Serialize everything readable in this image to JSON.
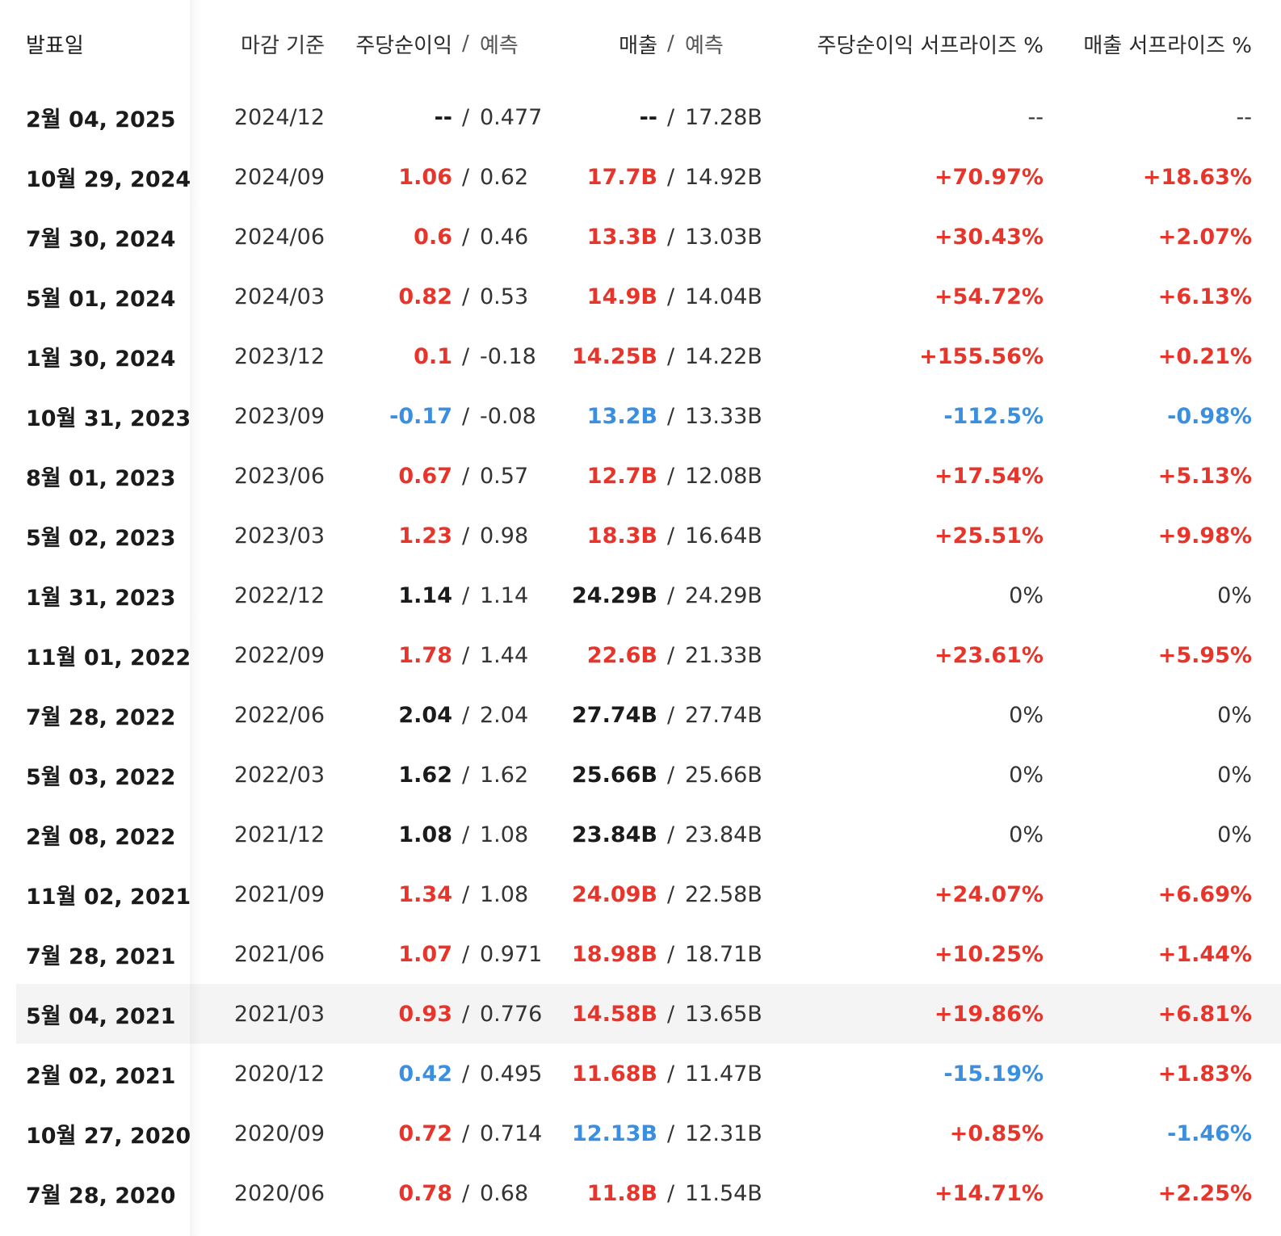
{
  "colors": {
    "positive": "#e8352b",
    "negative": "#3b8fe0",
    "neutral": "#1b1b1b",
    "highlight_row": "#f4f4f4"
  },
  "headers": {
    "date": "발표일",
    "period": "마감 기준",
    "eps": "주당순이익",
    "separator": "/",
    "forecast": "예측",
    "revenue": "매출",
    "eps_surprise": "주당순이익 서프라이즈 %",
    "revenue_surprise": "매출 서프라이즈 %"
  },
  "rows": [
    {
      "date": "2월 04, 2025",
      "period": "2024/12",
      "eps": "--",
      "eps_fc": "0.477",
      "rev": "--",
      "rev_fc": "17.28B",
      "eps_surp": "--",
      "rev_surp": "--",
      "eps_tone": "neutral",
      "rev_tone": "neutral",
      "eps_surp_tone": "muted",
      "rev_surp_tone": "muted"
    },
    {
      "date": "10월 29, 2024",
      "period": "2024/09",
      "eps": "1.06",
      "eps_fc": "0.62",
      "rev": "17.7B",
      "rev_fc": "14.92B",
      "eps_surp": "+70.97%",
      "rev_surp": "+18.63%",
      "eps_tone": "pos",
      "rev_tone": "pos",
      "eps_surp_tone": "pos",
      "rev_surp_tone": "pos"
    },
    {
      "date": "7월 30, 2024",
      "period": "2024/06",
      "eps": "0.6",
      "eps_fc": "0.46",
      "rev": "13.3B",
      "rev_fc": "13.03B",
      "eps_surp": "+30.43%",
      "rev_surp": "+2.07%",
      "eps_tone": "pos",
      "rev_tone": "pos",
      "eps_surp_tone": "pos",
      "rev_surp_tone": "pos"
    },
    {
      "date": "5월 01, 2024",
      "period": "2024/03",
      "eps": "0.82",
      "eps_fc": "0.53",
      "rev": "14.9B",
      "rev_fc": "14.04B",
      "eps_surp": "+54.72%",
      "rev_surp": "+6.13%",
      "eps_tone": "pos",
      "rev_tone": "pos",
      "eps_surp_tone": "pos",
      "rev_surp_tone": "pos"
    },
    {
      "date": "1월 30, 2024",
      "period": "2023/12",
      "eps": "0.1",
      "eps_fc": "-0.18",
      "rev": "14.25B",
      "rev_fc": "14.22B",
      "eps_surp": "+155.56%",
      "rev_surp": "+0.21%",
      "eps_tone": "pos",
      "rev_tone": "pos",
      "eps_surp_tone": "pos",
      "rev_surp_tone": "pos"
    },
    {
      "date": "10월 31, 2023",
      "period": "2023/09",
      "eps": "-0.17",
      "eps_fc": "-0.08",
      "rev": "13.2B",
      "rev_fc": "13.33B",
      "eps_surp": "-112.5%",
      "rev_surp": "-0.98%",
      "eps_tone": "neg",
      "rev_tone": "neg",
      "eps_surp_tone": "neg",
      "rev_surp_tone": "neg"
    },
    {
      "date": "8월 01, 2023",
      "period": "2023/06",
      "eps": "0.67",
      "eps_fc": "0.57",
      "rev": "12.7B",
      "rev_fc": "12.08B",
      "eps_surp": "+17.54%",
      "rev_surp": "+5.13%",
      "eps_tone": "pos",
      "rev_tone": "pos",
      "eps_surp_tone": "pos",
      "rev_surp_tone": "pos"
    },
    {
      "date": "5월 02, 2023",
      "period": "2023/03",
      "eps": "1.23",
      "eps_fc": "0.98",
      "rev": "18.3B",
      "rev_fc": "16.64B",
      "eps_surp": "+25.51%",
      "rev_surp": "+9.98%",
      "eps_tone": "pos",
      "rev_tone": "pos",
      "eps_surp_tone": "pos",
      "rev_surp_tone": "pos"
    },
    {
      "date": "1월 31, 2023",
      "period": "2022/12",
      "eps": "1.14",
      "eps_fc": "1.14",
      "rev": "24.29B",
      "rev_fc": "24.29B",
      "eps_surp": "0%",
      "rev_surp": "0%",
      "eps_tone": "neutral",
      "rev_tone": "neutral",
      "eps_surp_tone": "muted",
      "rev_surp_tone": "muted"
    },
    {
      "date": "11월 01, 2022",
      "period": "2022/09",
      "eps": "1.78",
      "eps_fc": "1.44",
      "rev": "22.6B",
      "rev_fc": "21.33B",
      "eps_surp": "+23.61%",
      "rev_surp": "+5.95%",
      "eps_tone": "pos",
      "rev_tone": "pos",
      "eps_surp_tone": "pos",
      "rev_surp_tone": "pos"
    },
    {
      "date": "7월 28, 2022",
      "period": "2022/06",
      "eps": "2.04",
      "eps_fc": "2.04",
      "rev": "27.74B",
      "rev_fc": "27.74B",
      "eps_surp": "0%",
      "rev_surp": "0%",
      "eps_tone": "neutral",
      "rev_tone": "neutral",
      "eps_surp_tone": "muted",
      "rev_surp_tone": "muted"
    },
    {
      "date": "5월 03, 2022",
      "period": "2022/03",
      "eps": "1.62",
      "eps_fc": "1.62",
      "rev": "25.66B",
      "rev_fc": "25.66B",
      "eps_surp": "0%",
      "rev_surp": "0%",
      "eps_tone": "neutral",
      "rev_tone": "neutral",
      "eps_surp_tone": "muted",
      "rev_surp_tone": "muted"
    },
    {
      "date": "2월 08, 2022",
      "period": "2021/12",
      "eps": "1.08",
      "eps_fc": "1.08",
      "rev": "23.84B",
      "rev_fc": "23.84B",
      "eps_surp": "0%",
      "rev_surp": "0%",
      "eps_tone": "neutral",
      "rev_tone": "neutral",
      "eps_surp_tone": "muted",
      "rev_surp_tone": "muted"
    },
    {
      "date": "11월 02, 2021",
      "period": "2021/09",
      "eps": "1.34",
      "eps_fc": "1.08",
      "rev": "24.09B",
      "rev_fc": "22.58B",
      "eps_surp": "+24.07%",
      "rev_surp": "+6.69%",
      "eps_tone": "pos",
      "rev_tone": "pos",
      "eps_surp_tone": "pos",
      "rev_surp_tone": "pos"
    },
    {
      "date": "7월 28, 2021",
      "period": "2021/06",
      "eps": "1.07",
      "eps_fc": "0.971",
      "rev": "18.98B",
      "rev_fc": "18.71B",
      "eps_surp": "+10.25%",
      "rev_surp": "+1.44%",
      "eps_tone": "pos",
      "rev_tone": "pos",
      "eps_surp_tone": "pos",
      "rev_surp_tone": "pos"
    },
    {
      "date": "5월 04, 2021",
      "period": "2021/03",
      "eps": "0.93",
      "eps_fc": "0.776",
      "rev": "14.58B",
      "rev_fc": "13.65B",
      "eps_surp": "+19.86%",
      "rev_surp": "+6.81%",
      "eps_tone": "pos",
      "rev_tone": "pos",
      "eps_surp_tone": "pos",
      "rev_surp_tone": "pos",
      "highlight": true
    },
    {
      "date": "2월 02, 2021",
      "period": "2020/12",
      "eps": "0.42",
      "eps_fc": "0.495",
      "rev": "11.68B",
      "rev_fc": "11.47B",
      "eps_surp": "-15.19%",
      "rev_surp": "+1.83%",
      "eps_tone": "neg",
      "rev_tone": "pos",
      "eps_surp_tone": "neg",
      "rev_surp_tone": "pos"
    },
    {
      "date": "10월 27, 2020",
      "period": "2020/09",
      "eps": "0.72",
      "eps_fc": "0.714",
      "rev": "12.13B",
      "rev_fc": "12.31B",
      "eps_surp": "+0.85%",
      "rev_surp": "-1.46%",
      "eps_tone": "pos",
      "rev_tone": "neg",
      "eps_surp_tone": "pos",
      "rev_surp_tone": "neg"
    },
    {
      "date": "7월 28, 2020",
      "period": "2020/06",
      "eps": "0.78",
      "eps_fc": "0.68",
      "rev": "11.8B",
      "rev_fc": "11.54B",
      "eps_surp": "+14.71%",
      "rev_surp": "+2.25%",
      "eps_tone": "pos",
      "rev_tone": "pos",
      "eps_surp_tone": "pos",
      "rev_surp_tone": "pos"
    }
  ]
}
